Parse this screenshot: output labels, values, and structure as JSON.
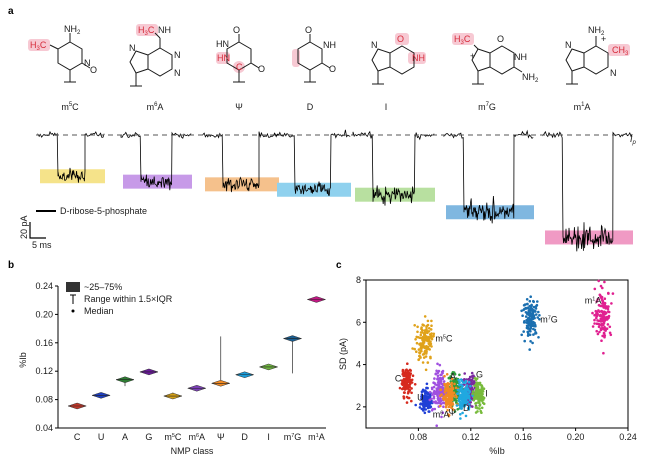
{
  "panel_labels": {
    "a": "a",
    "b": "b",
    "c": "c"
  },
  "panel_a": {
    "molecules": [
      {
        "name": "m5C",
        "base": "m",
        "sup": "5",
        "tail": "C",
        "mark_color": "#f0a4b4"
      },
      {
        "name": "m6A",
        "base": "m",
        "sup": "6",
        "tail": "A",
        "mark_color": "#f0a4b4"
      },
      {
        "name": "Ψ",
        "base": "Ψ",
        "sup": "",
        "tail": "",
        "mark_color": "#f0a4b4"
      },
      {
        "name": "D",
        "base": "D",
        "sup": "",
        "tail": "",
        "mark_color": "#f0a4b4"
      },
      {
        "name": "I",
        "base": "I",
        "sup": "",
        "tail": "",
        "mark_color": "#f0a4b4"
      },
      {
        "name": "m7G",
        "base": "m",
        "sup": "7",
        "tail": "G",
        "mark_color": "#f0a4b4"
      },
      {
        "name": "m1A",
        "base": "m",
        "sup": "1",
        "tail": "A",
        "mark_color": "#f0a4b4"
      }
    ],
    "atom_labels": {
      "nh2": "NH2",
      "nh": "NH",
      "hn": "HN",
      "n": "N",
      "o": "O",
      "h3c": "H3C",
      "ch3": "CH3",
      "plus": "+"
    },
    "trace_levels": [
      {
        "name": "m5C",
        "level": 0.085,
        "color": "#f5e38a"
      },
      {
        "name": "m6A",
        "level": 0.097,
        "color": "#c79ae8"
      },
      {
        "name": "Ψ",
        "level": 0.103,
        "color": "#f5c18c"
      },
      {
        "name": "D",
        "level": 0.115,
        "color": "#8fd1ee"
      },
      {
        "name": "I",
        "level": 0.126,
        "color": "#b8e0a0"
      },
      {
        "name": "m7G",
        "level": 0.165,
        "color": "#7fb7e0"
      },
      {
        "name": "m1A",
        "level": 0.221,
        "color": "#f09ac4"
      }
    ],
    "open_pore_label": "I",
    "open_pore_sub": "p",
    "legend_label": "D-ribose-5-phosphate",
    "scale_pa": "20 pA",
    "scale_ms": "5 ms"
  },
  "chart_data": [
    {
      "type": "box",
      "panel": "b",
      "xlabel": "NMP class",
      "ylabel": "%Ib",
      "ylim": [
        0.04,
        0.24
      ],
      "yticks": [
        "0.04",
        "0.08",
        "0.12",
        "0.16",
        "0.20",
        "0.24"
      ],
      "categories": [
        "C",
        "U",
        "A",
        "G",
        "m5C",
        "m6A",
        "Ψ",
        "D",
        "I",
        "m7G",
        "m1A"
      ],
      "medians": [
        0.071,
        0.086,
        0.108,
        0.119,
        0.085,
        0.096,
        0.103,
        0.115,
        0.126,
        0.166,
        0.221
      ],
      "whisker_low": [
        0.069,
        0.084,
        0.099,
        0.117,
        0.081,
        0.094,
        0.099,
        0.113,
        0.123,
        0.117,
        0.218
      ],
      "whisker_high": [
        0.073,
        0.088,
        0.112,
        0.122,
        0.09,
        0.098,
        0.169,
        0.117,
        0.129,
        0.17,
        0.224
      ],
      "colors": [
        "#c0392b",
        "#1f3fbf",
        "#2e7d32",
        "#6a1b9a",
        "#d4a017",
        "#7b3fb5",
        "#f08a24",
        "#1b9ad6",
        "#6fb43f",
        "#1a5e91",
        "#c21884"
      ],
      "legend": {
        "box": "~25–75%",
        "whisker": "Range within 1.5×IQR",
        "median": "Median"
      }
    },
    {
      "type": "scatter",
      "panel": "c",
      "xlabel": "%Ib",
      "ylabel": "SD (pA)",
      "xlim": [
        0.04,
        0.24
      ],
      "ylim": [
        1,
        8
      ],
      "xticks": [
        "0.08",
        "0.12",
        "0.16",
        "0.20",
        "0.24"
      ],
      "yticks": [
        "2",
        "4",
        "6",
        "8"
      ],
      "series": [
        {
          "name": "C",
          "x": 0.071,
          "y": 3.2,
          "sx": 0.002,
          "sy": 0.35,
          "color": "#d62a1e"
        },
        {
          "name": "U",
          "x": 0.086,
          "y": 2.3,
          "sx": 0.002,
          "sy": 0.25,
          "color": "#1f3fd6"
        },
        {
          "name": "A",
          "x": 0.108,
          "y": 2.8,
          "sx": 0.0025,
          "sy": 0.35,
          "color": "#2e9c3a"
        },
        {
          "name": "G",
          "x": 0.119,
          "y": 2.8,
          "sx": 0.0025,
          "sy": 0.35,
          "color": "#7a2aa0"
        },
        {
          "name": "m5C",
          "x": 0.085,
          "y": 5.1,
          "sx": 0.003,
          "sy": 0.45,
          "color": "#e0a21a"
        },
        {
          "name": "m6A",
          "x": 0.096,
          "y": 2.8,
          "sx": 0.0025,
          "sy": 0.45,
          "color": "#a050e0"
        },
        {
          "name": "Ψ",
          "x": 0.103,
          "y": 2.5,
          "sx": 0.0025,
          "sy": 0.35,
          "color": "#f08a24"
        },
        {
          "name": "D",
          "x": 0.115,
          "y": 2.5,
          "sx": 0.0025,
          "sy": 0.35,
          "color": "#20a8e0"
        },
        {
          "name": "I",
          "x": 0.126,
          "y": 2.5,
          "sx": 0.002,
          "sy": 0.3,
          "color": "#78bb3c"
        },
        {
          "name": "m7G",
          "x": 0.166,
          "y": 6.2,
          "sx": 0.003,
          "sy": 0.45,
          "color": "#1a6fb0"
        },
        {
          "name": "m1A",
          "x": 0.221,
          "y": 6.4,
          "sx": 0.003,
          "sy": 0.55,
          "color": "#e02090"
        }
      ],
      "point_labels": [
        {
          "text": "C",
          "sup": "",
          "tail": "",
          "x": 0.062,
          "y": 3.2,
          "color": "#000000"
        },
        {
          "text": "U",
          "sup": "",
          "tail": "",
          "x": 0.079,
          "y": 2.3,
          "color": "#000000"
        },
        {
          "text": "m",
          "sup": "5",
          "tail": "C",
          "x": 0.093,
          "y": 5.1,
          "color": "#c07a00"
        },
        {
          "text": "m",
          "sup": "6",
          "tail": "A",
          "x": 0.091,
          "y": 1.5,
          "color": "#9a40d0"
        },
        {
          "text": "Ψ",
          "sup": "",
          "tail": "",
          "x": 0.103,
          "y": 1.6,
          "color": "#e07a10"
        },
        {
          "text": "A",
          "sup": "",
          "tail": "",
          "x": 0.104,
          "y": 3.3,
          "color": "#000000"
        },
        {
          "text": "D",
          "sup": "",
          "tail": "",
          "x": 0.114,
          "y": 1.8,
          "color": "#1a90c8"
        },
        {
          "text": "G",
          "sup": "",
          "tail": "",
          "x": 0.124,
          "y": 3.4,
          "color": "#000000"
        },
        {
          "text": "I",
          "sup": "",
          "tail": "",
          "x": 0.131,
          "y": 2.5,
          "color": "#000000"
        },
        {
          "text": "m",
          "sup": "7",
          "tail": "G",
          "x": 0.173,
          "y": 6.0,
          "color": "#1a5e91"
        },
        {
          "text": "m",
          "sup": "1",
          "tail": "A",
          "x": 0.207,
          "y": 6.9,
          "color": "#c21884"
        }
      ]
    }
  ]
}
